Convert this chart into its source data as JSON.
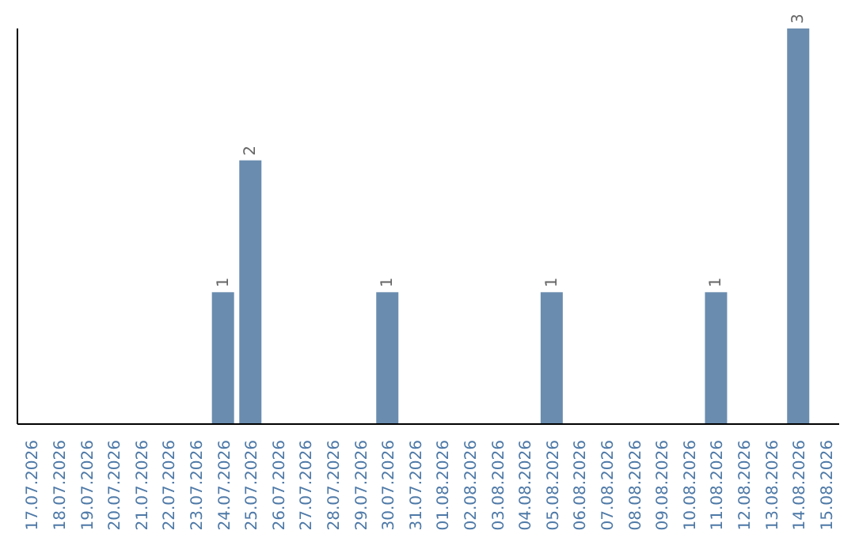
{
  "chart_data": {
    "type": "bar",
    "categories": [
      "17.07.2026",
      "18.07.2026",
      "19.07.2026",
      "20.07.2026",
      "21.07.2026",
      "22.07.2026",
      "23.07.2026",
      "24.07.2026",
      "25.07.2026",
      "26.07.2026",
      "27.07.2026",
      "28.07.2026",
      "29.07.2026",
      "30.07.2026",
      "31.07.2026",
      "01.08.2026",
      "02.08.2026",
      "03.08.2026",
      "04.08.2026",
      "05.08.2026",
      "06.08.2026",
      "07.08.2026",
      "08.08.2026",
      "09.08.2026",
      "10.08.2026",
      "11.08.2026",
      "12.08.2026",
      "13.08.2026",
      "14.08.2026",
      "15.08.2026"
    ],
    "values": [
      0,
      0,
      0,
      0,
      0,
      0,
      0,
      1,
      2,
      0,
      0,
      0,
      0,
      1,
      0,
      0,
      0,
      0,
      0,
      1,
      0,
      0,
      0,
      0,
      0,
      1,
      0,
      0,
      3,
      0
    ],
    "value_labels": [
      null,
      null,
      null,
      null,
      null,
      null,
      null,
      "1",
      "2",
      null,
      null,
      null,
      null,
      "1",
      null,
      null,
      null,
      null,
      null,
      "1",
      null,
      null,
      null,
      null,
      null,
      "1",
      null,
      null,
      "3",
      null
    ],
    "color": "#6a8caf",
    "grid": false,
    "legend": false,
    "tick_labels": "x"
  }
}
